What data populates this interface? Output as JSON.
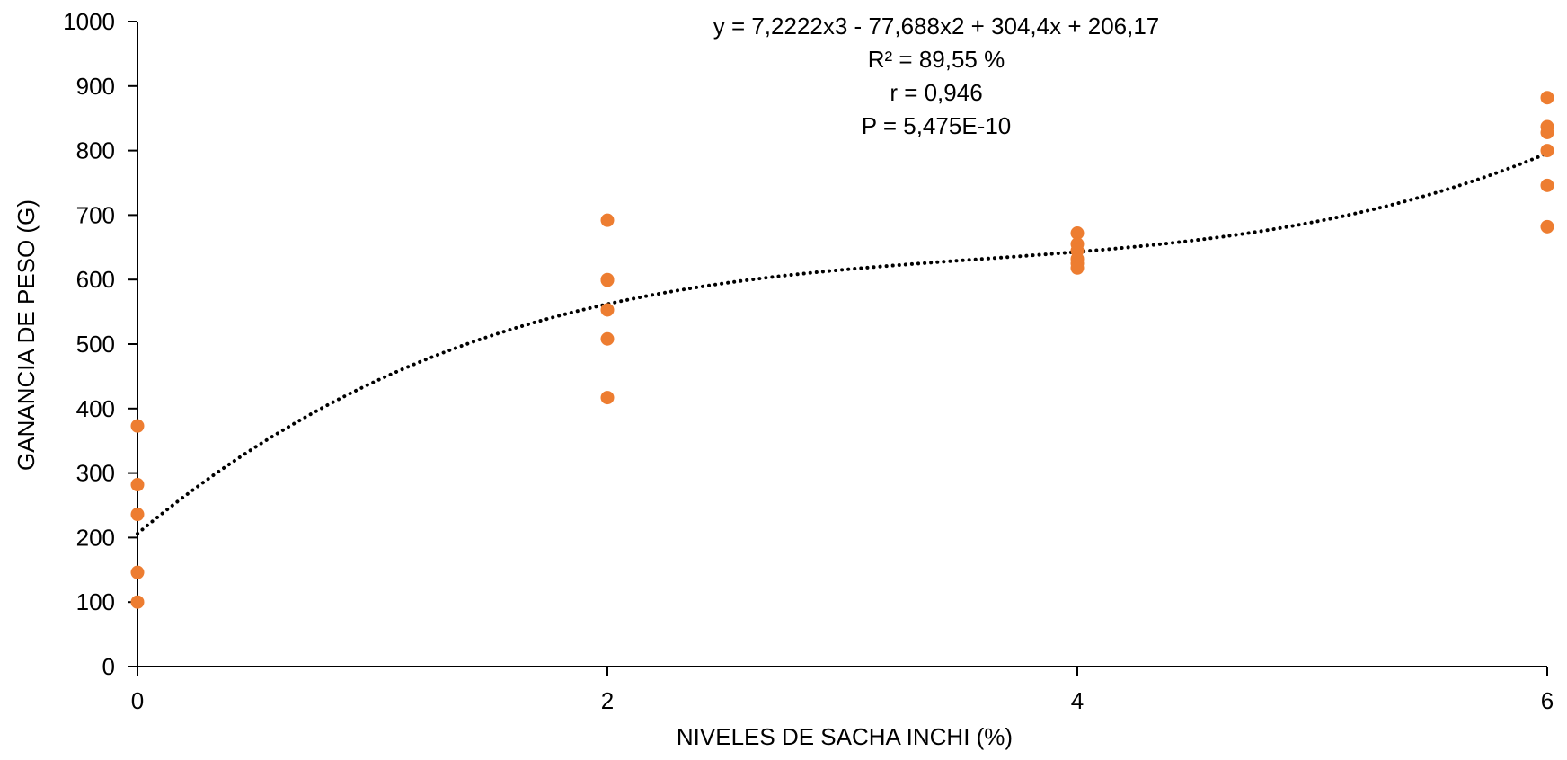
{
  "chart_data": {
    "type": "scatter",
    "title": "",
    "xlabel": "NIVELES DE SACHA INCHI (%)",
    "ylabel": "GANANCIA DE PESO (G)",
    "xlim": [
      0,
      6
    ],
    "ylim": [
      0,
      1000
    ],
    "x_ticks": [
      0,
      2,
      4,
      6
    ],
    "y_ticks": [
      0,
      100,
      200,
      300,
      400,
      500,
      600,
      700,
      800,
      900,
      1000
    ],
    "grid": false,
    "legend": "none",
    "series": [
      {
        "x": [
          0,
          0,
          0,
          0,
          0,
          2,
          2,
          2,
          2,
          2,
          2,
          4,
          4,
          4,
          4,
          4,
          4,
          6,
          6,
          6,
          6,
          6,
          6
        ],
        "y": [
          373,
          282,
          236,
          146,
          100,
          692,
          600,
          599,
          553,
          508,
          417,
          672,
          655,
          645,
          632,
          625,
          618,
          882,
          837,
          828,
          800,
          746,
          682
        ],
        "color": "#ED7D31"
      }
    ],
    "trendline": {
      "type": "polynomial",
      "degree": 3,
      "coefficients": [
        7.2222,
        -77.688,
        304.4,
        206.17
      ],
      "style": "dotted",
      "color": "#000000"
    },
    "annotations": [
      "y = 7,2222x3 - 77,688x2 + 304,4x + 206,17",
      "R² = 89,55 %",
      "r = 0,946",
      "P = 5,475E-10"
    ]
  }
}
